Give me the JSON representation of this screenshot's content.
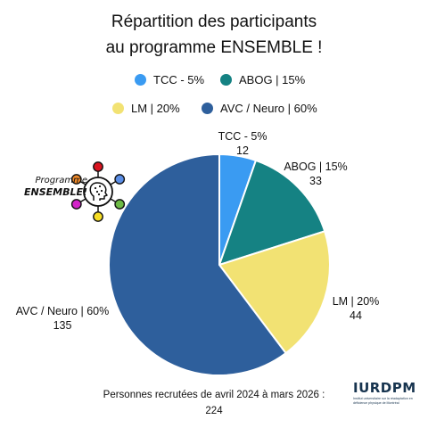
{
  "title": {
    "line1": "Répartition des participants",
    "line2": "au programme ENSEMBLE !"
  },
  "chart_data": {
    "type": "pie",
    "title": "Répartition des participants au programme ENSEMBLE !",
    "slices": [
      {
        "label": "TCC - 5%",
        "value": 12,
        "color": "#3a9bf2"
      },
      {
        "label": "ABOG | 15%",
        "value": 33,
        "color": "#158283"
      },
      {
        "label": "LM | 20%",
        "value": 44,
        "color": "#f2e273"
      },
      {
        "label": "AVC / Neuro | 60%",
        "value": 135,
        "color": "#2e5f9c"
      }
    ],
    "legend_position": "top",
    "start_angle": "12 o'clock, clockwise"
  },
  "legend": [
    {
      "label": "TCC - 5%",
      "color": "#3a9bf2"
    },
    {
      "label": "ABOG | 15%",
      "color": "#158283"
    },
    {
      "label": "LM | 20%",
      "color": "#f2e273"
    },
    {
      "label": "AVC / Neuro | 60%",
      "color": "#2e5f9c"
    }
  ],
  "logo": {
    "caption_line1": "Programme",
    "caption_line2": "ENSEMBLE!",
    "icon": "head-network-icon",
    "node_colors": [
      "#d9141f",
      "#5b8ee6",
      "#6dbb45",
      "#f6dd24",
      "#d324c9",
      "#f08a2a"
    ]
  },
  "footer": {
    "line1": "Personnes recrutées de avril 2024 à mars 2026 :",
    "line2": "224"
  },
  "brand": {
    "name": "IURDPM",
    "subtitle": "Institut universitaire sur la réadaptation en déficience physique de Montréal"
  }
}
